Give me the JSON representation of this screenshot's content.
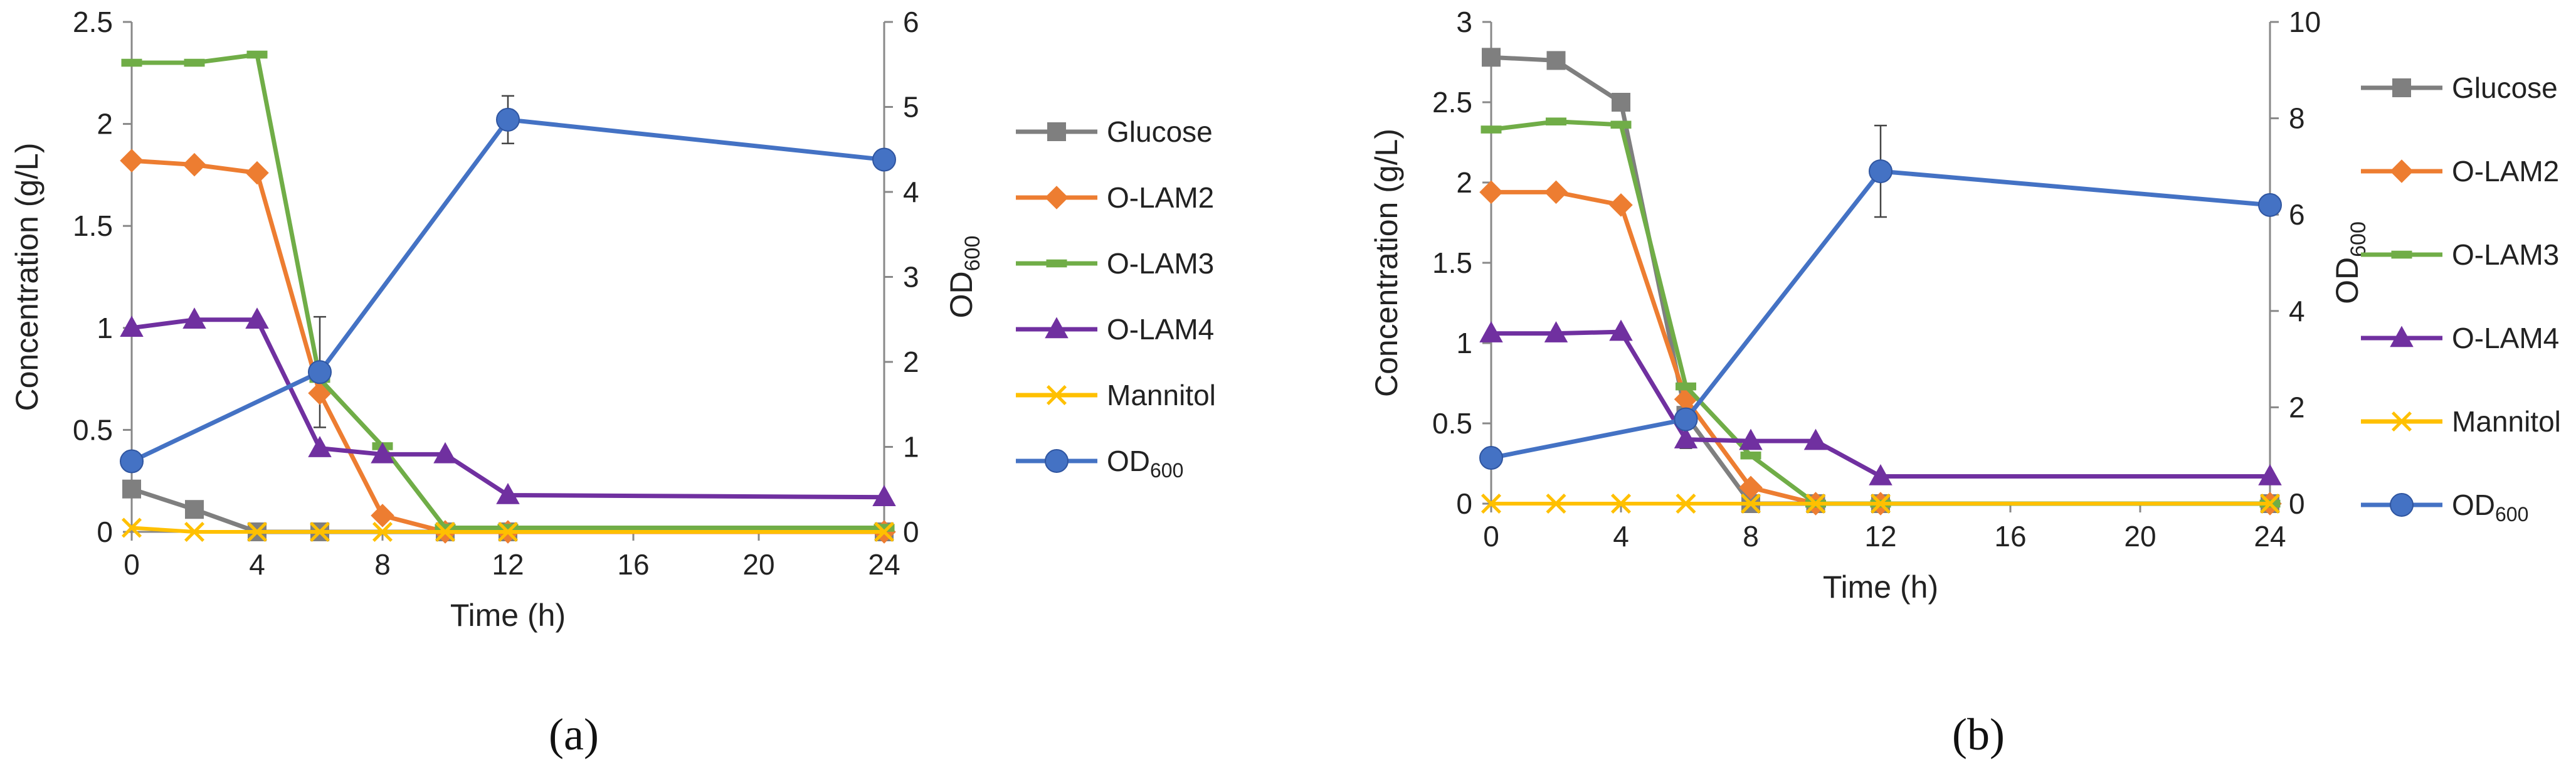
{
  "chart_data": [
    {
      "type": "line",
      "panel_label": "(a)",
      "xlabel": "Time (h)",
      "ylabel": "Concentration (g/L)",
      "y2label": "OD",
      "y2label_sub": "600",
      "xlim": [
        0,
        24
      ],
      "ylim": [
        0,
        2.5
      ],
      "y2lim": [
        0,
        6
      ],
      "x_ticks": [
        "0",
        "4",
        "8",
        "12",
        "16",
        "20",
        "24"
      ],
      "y_ticks": [
        "0",
        "0.5",
        "1",
        "1.5",
        "2",
        "2.5"
      ],
      "y2_ticks": [
        "0",
        "1",
        "2",
        "3",
        "4",
        "5",
        "6"
      ],
      "legend_position": "right",
      "series": [
        {
          "name": "Glucose",
          "color": "#7f7f7f",
          "marker": "square",
          "axis": "left",
          "x": [
            0,
            2,
            4,
            6,
            10,
            12,
            24
          ],
          "values": [
            0.21,
            0.11,
            0.0,
            0.0,
            0.0,
            0.0,
            0.0
          ]
        },
        {
          "name": "O-LAM2",
          "color": "#ed7d31",
          "marker": "diamond",
          "axis": "left",
          "x": [
            0,
            2,
            4,
            6,
            8,
            10,
            12,
            24
          ],
          "values": [
            1.82,
            1.8,
            1.76,
            0.68,
            0.08,
            0.0,
            0.0,
            0.0
          ]
        },
        {
          "name": "O-LAM3",
          "color": "#70ad47",
          "marker": "dash",
          "axis": "left",
          "x": [
            0,
            2,
            4,
            6,
            8,
            10,
            12,
            24
          ],
          "values": [
            2.3,
            2.3,
            2.34,
            0.75,
            0.42,
            0.02,
            0.02,
            0.02
          ]
        },
        {
          "name": "O-LAM4",
          "color": "#7030a0",
          "marker": "triangle",
          "axis": "left",
          "x": [
            0,
            2,
            4,
            6,
            8,
            10,
            12,
            24
          ],
          "values": [
            1.0,
            1.04,
            1.04,
            0.41,
            0.38,
            0.38,
            0.18,
            0.17
          ]
        },
        {
          "name": "Mannitol",
          "color": "#ffc000",
          "marker": "x",
          "axis": "left",
          "x": [
            0,
            2,
            4,
            6,
            8,
            10,
            12,
            24
          ],
          "values": [
            0.02,
            0.0,
            0.0,
            0.0,
            0.0,
            0.0,
            0.0,
            0.0
          ]
        },
        {
          "name": "OD",
          "name_sub": "600",
          "color": "#4472c4",
          "marker": "circle",
          "axis": "right",
          "x": [
            0,
            6,
            12,
            24
          ],
          "values": [
            0.83,
            1.88,
            4.85,
            4.38
          ],
          "errors": [
            0,
            0.65,
            0.28,
            0
          ]
        }
      ]
    },
    {
      "type": "line",
      "panel_label": "(b)",
      "xlabel": "Time (h)",
      "ylabel": "Concentration  (g/L)",
      "y2label": "OD",
      "y2label_sub": "600",
      "xlim": [
        0,
        24
      ],
      "ylim": [
        0,
        3
      ],
      "y2lim": [
        0,
        10
      ],
      "x_ticks": [
        "0",
        "4",
        "8",
        "12",
        "16",
        "20",
        "24"
      ],
      "y_ticks": [
        "0",
        "0.5",
        "1",
        "1.5",
        "2",
        "2.5",
        "3"
      ],
      "y2_ticks": [
        "0",
        "2",
        "4",
        "6",
        "8",
        "10"
      ],
      "legend_position": "right",
      "series": [
        {
          "name": "Glucose",
          "color": "#7f7f7f",
          "marker": "square",
          "axis": "left",
          "x": [
            0,
            2,
            4,
            6,
            8,
            10,
            12,
            24
          ],
          "values": [
            2.78,
            2.76,
            2.5,
            0.55,
            0.0,
            0.0,
            0.0,
            0.0
          ]
        },
        {
          "name": "O-LAM2",
          "color": "#ed7d31",
          "marker": "diamond",
          "axis": "left",
          "x": [
            0,
            2,
            4,
            6,
            8,
            10,
            12,
            24
          ],
          "values": [
            1.94,
            1.94,
            1.86,
            0.65,
            0.1,
            0.0,
            0.0,
            0.0
          ]
        },
        {
          "name": "O-LAM3",
          "color": "#70ad47",
          "marker": "dash",
          "axis": "left",
          "x": [
            0,
            2,
            4,
            6,
            8,
            10,
            12,
            24
          ],
          "values": [
            2.33,
            2.38,
            2.36,
            0.73,
            0.3,
            0.0,
            0.0,
            0.0
          ]
        },
        {
          "name": "O-LAM4",
          "color": "#7030a0",
          "marker": "triangle",
          "axis": "left",
          "x": [
            0,
            2,
            4,
            6,
            8,
            10,
            12,
            24
          ],
          "values": [
            1.06,
            1.06,
            1.07,
            0.4,
            0.39,
            0.39,
            0.17,
            0.17
          ]
        },
        {
          "name": "Mannitol",
          "color": "#ffc000",
          "marker": "x",
          "axis": "left",
          "x": [
            0,
            2,
            4,
            6,
            8,
            10,
            12,
            24
          ],
          "values": [
            0.0,
            0.0,
            0.0,
            0.0,
            0.0,
            0.0,
            0.0,
            0.0
          ]
        },
        {
          "name": "OD",
          "name_sub": "600",
          "color": "#4472c4",
          "marker": "circle",
          "axis": "right",
          "x": [
            0,
            6,
            12,
            24
          ],
          "values": [
            0.95,
            1.75,
            6.9,
            6.2
          ],
          "errors": [
            0,
            0.6,
            0.95,
            0
          ]
        }
      ]
    }
  ]
}
